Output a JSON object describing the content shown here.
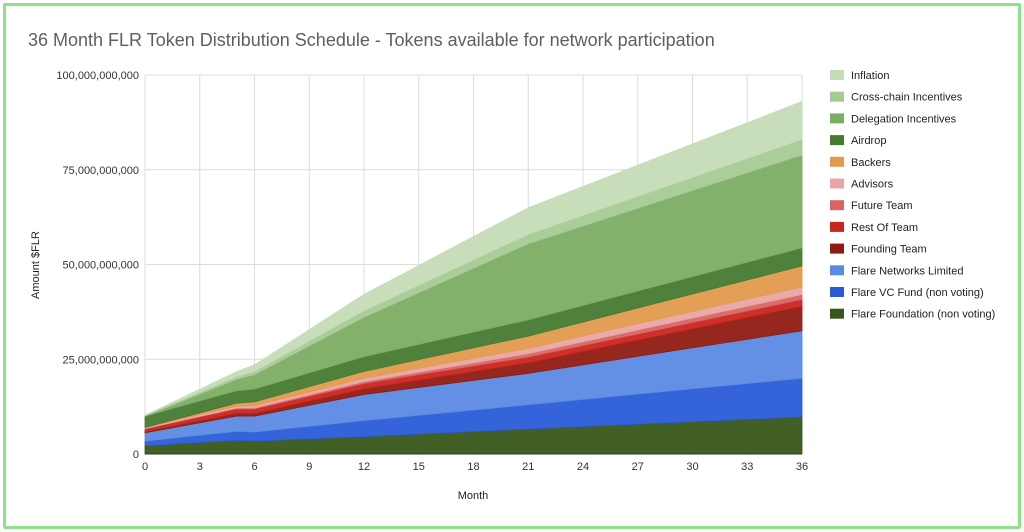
{
  "chart_data": {
    "type": "area",
    "stacked": true,
    "title": "36 Month FLR Token Distribution Schedule - Tokens available for network participation",
    "xlabel": "Month",
    "ylabel": "Amount $FLR",
    "xlim": [
      0,
      36
    ],
    "ylim": [
      0,
      100000000000
    ],
    "xticks": [
      "0",
      "3",
      "6",
      "9",
      "12",
      "15",
      "18",
      "21",
      "24",
      "27",
      "30",
      "33",
      "36"
    ],
    "yticks": [
      "0",
      "25,000,000,000",
      "50,000,000,000",
      "75,000,000,000",
      "100,000,000,000"
    ],
    "grid": true,
    "legend_position": "right",
    "x": [
      0,
      5,
      6,
      12,
      21,
      36
    ],
    "series": [
      {
        "name": "Flare Foundation (non voting)",
        "color": "#38571a",
        "values": [
          2200000000,
          3600000000,
          3400000000,
          4600000000,
          6600000000,
          9800000000
        ]
      },
      {
        "name": "Flare VC Fund (non voting)",
        "color": "#2a5bd7",
        "values": [
          1200000000,
          2400000000,
          2400000000,
          4200000000,
          6400000000,
          10200000000
        ]
      },
      {
        "name": "Flare Networks Limited",
        "color": "#5b8ae3",
        "values": [
          2200000000,
          4000000000,
          4200000000,
          6900000000,
          8300000000,
          12500000000
        ]
      },
      {
        "name": "Founding Team",
        "color": "#8f1b13",
        "values": [
          300000000,
          700000000,
          700000000,
          1500000000,
          2800000000,
          6500000000
        ]
      },
      {
        "name": "Rest Of Team",
        "color": "#c9251c",
        "values": [
          800000000,
          1200000000,
          1200000000,
          1400000000,
          1500000000,
          1800000000
        ]
      },
      {
        "name": "Future Team",
        "color": "#d86464",
        "values": [
          0,
          200000000,
          250000000,
          500000000,
          900000000,
          1300000000
        ]
      },
      {
        "name": "Advisors",
        "color": "#e9a5a5",
        "values": [
          300000000,
          500000000,
          600000000,
          900000000,
          1400000000,
          2000000000
        ]
      },
      {
        "name": "Backers",
        "color": "#e39a4d",
        "values": [
          0,
          800000000,
          1000000000,
          1800000000,
          3200000000,
          5500000000
        ]
      },
      {
        "name": "Airdrop",
        "color": "#467a31",
        "values": [
          3000000000,
          3300000000,
          3400000000,
          3900000000,
          4300000000,
          4800000000
        ]
      },
      {
        "name": "Delegation Incentives",
        "color": "#7cad63",
        "values": [
          0,
          3000000000,
          3800000000,
          10400000000,
          20100000000,
          24500000000
        ]
      },
      {
        "name": "Cross-chain Incentives",
        "color": "#a6ca93",
        "values": [
          200000000,
          700000000,
          850000000,
          1700000000,
          2500000000,
          4100000000
        ]
      },
      {
        "name": "Inflation",
        "color": "#c5dcb6",
        "values": [
          0,
          1300000000,
          1700000000,
          4300000000,
          7000000000,
          10000000000
        ]
      }
    ]
  }
}
